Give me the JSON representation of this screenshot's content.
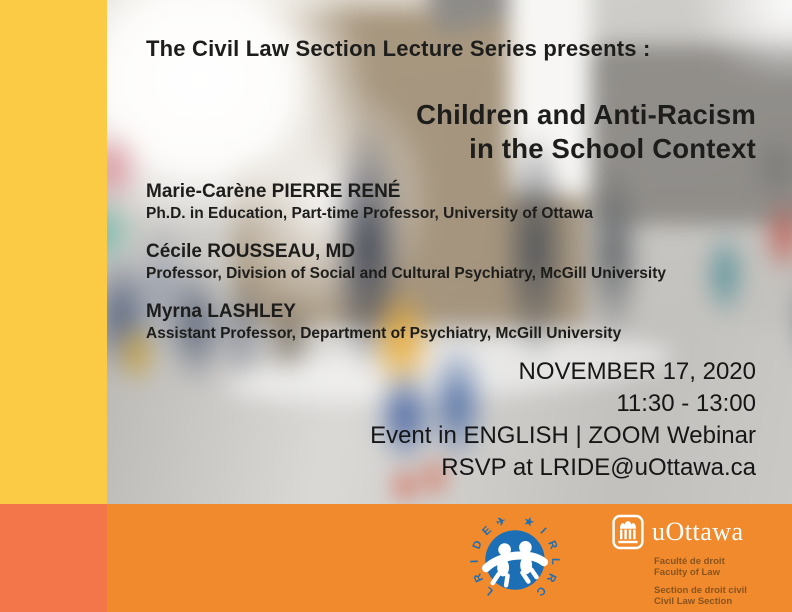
{
  "poster": {
    "kicker": "The Civil Law Section Lecture Series presents :",
    "title": {
      "line1": "Children and Anti-Racism",
      "line2": "in the School Context"
    },
    "speakers": [
      {
        "name": "Marie-Carène PIERRE RENÉ",
        "affiliation": "Ph.D. in Education, Part-time Professor, University of Ottawa"
      },
      {
        "name": "Cécile ROUSSEAU, MD",
        "affiliation": "Professor, Division of Social and Cultural Psychiatry, McGill University"
      },
      {
        "name": "Myrna LASHLEY",
        "affiliation": "Assistant Professor, Department of Psychiatry, McGill University"
      }
    ],
    "event": {
      "date": "NOVEMBER 17, 2020",
      "time": "11:30 - 13:00",
      "format": "Event in ENGLISH | ZOOM Webinar",
      "rsvp": "RSVP at LRIDE@uOttawa.ca"
    },
    "logos": {
      "lride": {
        "left_arc": "LRIDE",
        "right_arc": "IRLRC",
        "plane_icon": "✈",
        "star_icon": "★"
      },
      "uottawa": {
        "wordmark": "uOttawa",
        "lines": [
          "Faculté de droit",
          "Faculty of Law",
          "Section de droit civil",
          "Civil Law Section"
        ]
      }
    },
    "colors": {
      "yellow_stripe": "#FCCB45",
      "coral_stripe": "#F3764B",
      "orange_band": "#F18A2C",
      "logo_blue": "#1C6FB5",
      "text": "#1d1d1b"
    }
  }
}
